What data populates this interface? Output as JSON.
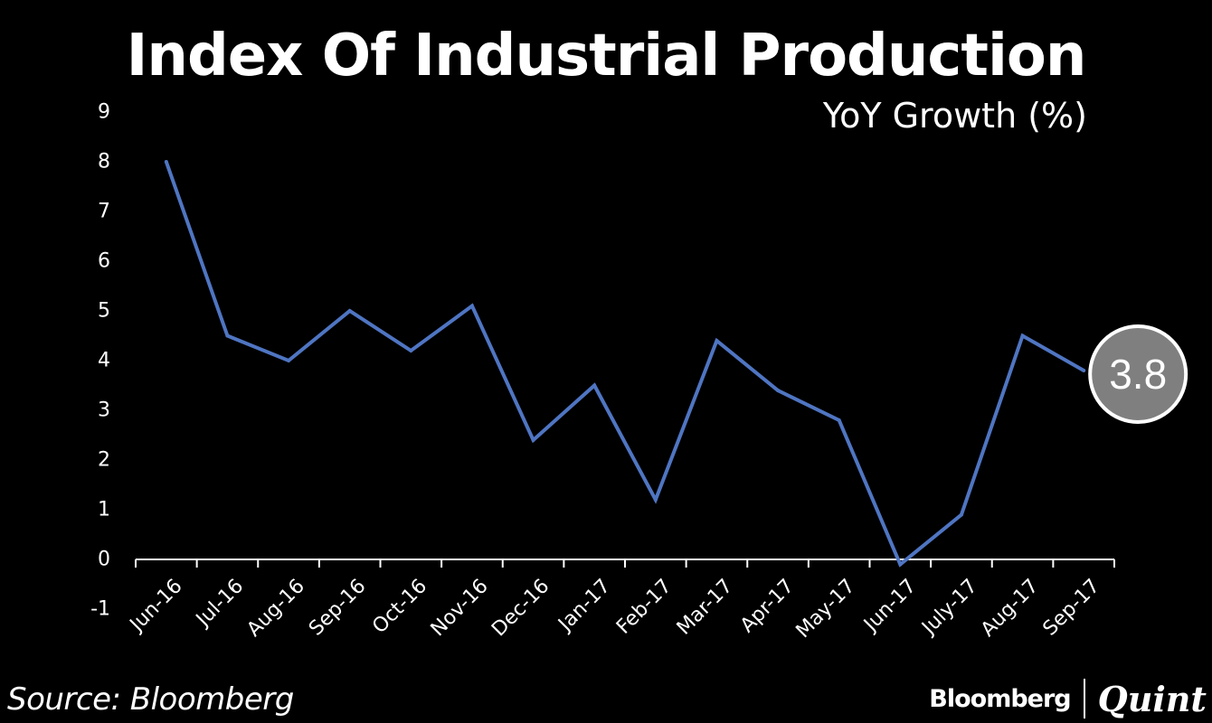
{
  "chart_data": {
    "type": "line",
    "title": "Index Of Industrial Production",
    "subtitle": "YoY Growth (%)",
    "categories": [
      "Jun-16",
      "Jul-16",
      "Aug-16",
      "Sep-16",
      "Oct-16",
      "Nov-16",
      "Dec-16",
      "Jan-17",
      "Feb-17",
      "Mar-17",
      "Apr-17",
      "May-17",
      "Jun-17",
      "July-17",
      "Aug-17",
      "Sep-17"
    ],
    "values": [
      8.0,
      4.5,
      4.0,
      5.0,
      4.2,
      5.1,
      2.4,
      3.5,
      1.2,
      4.4,
      3.4,
      2.8,
      -0.1,
      0.9,
      4.5,
      3.8
    ],
    "ylim": [
      -1,
      9
    ],
    "yticks": [
      "9",
      "8",
      "7",
      "6",
      "5",
      "4",
      "3",
      "2",
      "1",
      "0",
      "-1"
    ],
    "callout": "3.8",
    "line_color": "#4f75c2",
    "callout_color": "#7f7f7f",
    "xlabel": "",
    "ylabel": ""
  },
  "source": "Source: Bloomberg",
  "brand": {
    "left": "Bloomberg",
    "right": "Quint"
  }
}
